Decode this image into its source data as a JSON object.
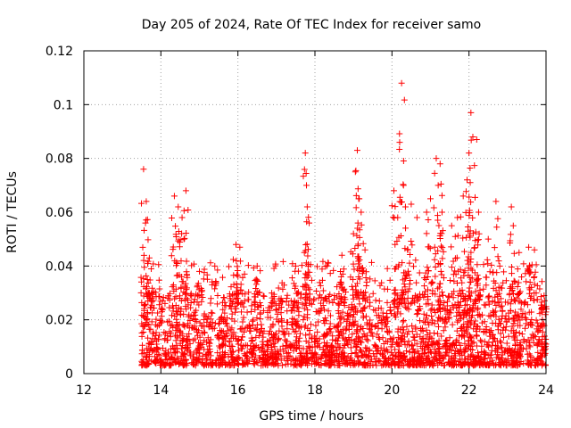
{
  "chart_data": {
    "type": "scatter",
    "title": "Day 205 of 2024, Rate Of TEC Index for receiver samo",
    "xlabel": "GPS time / hours",
    "ylabel": "ROTI / TECUs",
    "xlim": [
      12,
      24
    ],
    "ylim": [
      0,
      0.12
    ],
    "x_ticks": [
      12,
      14,
      16,
      18,
      20,
      22,
      24
    ],
    "x_tick_labels": [
      "12",
      "14",
      "16",
      "18",
      "20",
      "22",
      "24"
    ],
    "y_ticks": [
      0,
      0.02,
      0.04,
      0.06,
      0.08,
      0.1,
      0.12
    ],
    "y_tick_labels": [
      "0",
      "0.02",
      "0.04",
      "0.06",
      "0.08",
      "0.1",
      "0.12"
    ],
    "grid": true,
    "marker": "+",
    "marker_color": "#ff0000",
    "data_start_hour": 13.5,
    "data_end_hour": 24,
    "series": [
      {
        "name": "ROTI",
        "baseline_band": [
          0.003,
          0.03
        ],
        "peaks": [
          {
            "x": 13.55,
            "y": 0.076
          },
          {
            "x": 13.62,
            "y": 0.064
          },
          {
            "x": 13.6,
            "y": 0.056
          },
          {
            "x": 13.7,
            "y": 0.043
          },
          {
            "x": 14.35,
            "y": 0.066
          },
          {
            "x": 14.45,
            "y": 0.062
          },
          {
            "x": 14.65,
            "y": 0.068
          },
          {
            "x": 14.55,
            "y": 0.058
          },
          {
            "x": 14.6,
            "y": 0.05
          },
          {
            "x": 15.0,
            "y": 0.038
          },
          {
            "x": 15.4,
            "y": 0.04
          },
          {
            "x": 15.95,
            "y": 0.048
          },
          {
            "x": 16.05,
            "y": 0.047
          },
          {
            "x": 16.5,
            "y": 0.04
          },
          {
            "x": 17.5,
            "y": 0.04
          },
          {
            "x": 17.75,
            "y": 0.082
          },
          {
            "x": 17.78,
            "y": 0.07
          },
          {
            "x": 17.8,
            "y": 0.062
          },
          {
            "x": 17.85,
            "y": 0.056
          },
          {
            "x": 18.7,
            "y": 0.044
          },
          {
            "x": 19.0,
            "y": 0.052
          },
          {
            "x": 19.1,
            "y": 0.083
          },
          {
            "x": 19.05,
            "y": 0.075
          },
          {
            "x": 19.15,
            "y": 0.065
          },
          {
            "x": 19.2,
            "y": 0.06
          },
          {
            "x": 19.3,
            "y": 0.046
          },
          {
            "x": 20.05,
            "y": 0.068
          },
          {
            "x": 20.2,
            "y": 0.086
          },
          {
            "x": 20.25,
            "y": 0.108
          },
          {
            "x": 20.3,
            "y": 0.07
          },
          {
            "x": 20.35,
            "y": 0.062
          },
          {
            "x": 20.5,
            "y": 0.063
          },
          {
            "x": 20.65,
            "y": 0.058
          },
          {
            "x": 20.9,
            "y": 0.06
          },
          {
            "x": 21.0,
            "y": 0.065
          },
          {
            "x": 21.15,
            "y": 0.08
          },
          {
            "x": 21.25,
            "y": 0.078
          },
          {
            "x": 21.2,
            "y": 0.07
          },
          {
            "x": 21.3,
            "y": 0.06
          },
          {
            "x": 21.55,
            "y": 0.055
          },
          {
            "x": 21.7,
            "y": 0.058
          },
          {
            "x": 21.85,
            "y": 0.066
          },
          {
            "x": 21.95,
            "y": 0.072
          },
          {
            "x": 22.0,
            "y": 0.082
          },
          {
            "x": 22.05,
            "y": 0.097
          },
          {
            "x": 22.1,
            "y": 0.088
          },
          {
            "x": 22.2,
            "y": 0.087
          },
          {
            "x": 22.25,
            "y": 0.06
          },
          {
            "x": 22.5,
            "y": 0.05
          },
          {
            "x": 22.7,
            "y": 0.064
          },
          {
            "x": 22.8,
            "y": 0.04
          },
          {
            "x": 23.1,
            "y": 0.062
          },
          {
            "x": 23.15,
            "y": 0.055
          },
          {
            "x": 23.3,
            "y": 0.045
          },
          {
            "x": 23.55,
            "y": 0.047
          },
          {
            "x": 23.7,
            "y": 0.046
          },
          {
            "x": 23.95,
            "y": 0.029
          }
        ]
      }
    ]
  }
}
